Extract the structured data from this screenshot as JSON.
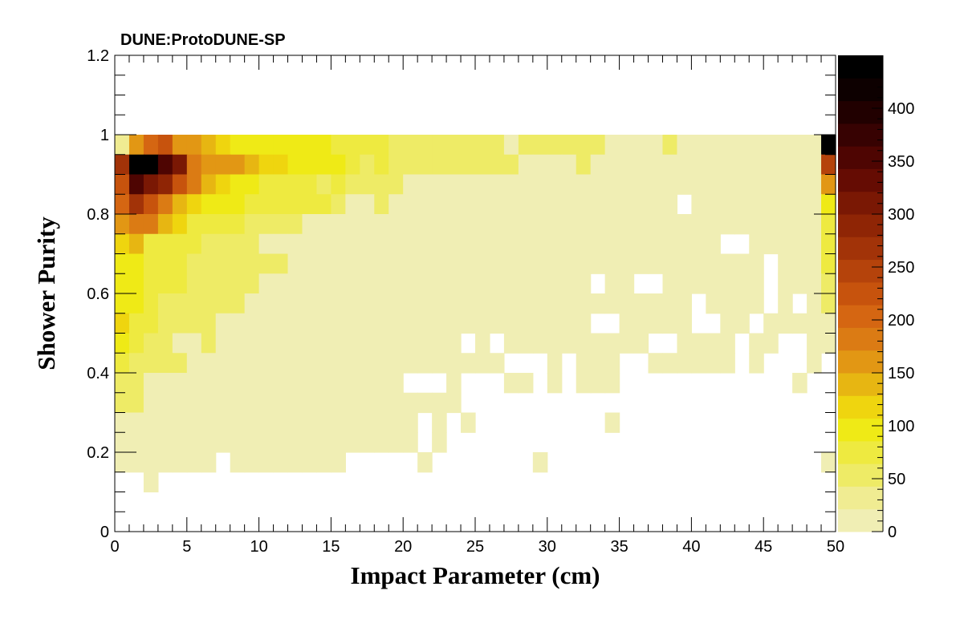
{
  "chart_data": {
    "type": "heatmap",
    "title": "DUNE:ProtoDUNE-SP",
    "xlabel": "Impact Parameter (cm)",
    "ylabel": "Shower Purity",
    "xlim": [
      0,
      50
    ],
    "ylim": [
      0,
      1.2
    ],
    "x_ticks": [
      "0",
      "5",
      "10",
      "15",
      "20",
      "25",
      "30",
      "35",
      "40",
      "45",
      "50"
    ],
    "y_ticks": [
      "0",
      "0.2",
      "0.4",
      "0.6",
      "0.8",
      "1",
      "1.2"
    ],
    "z_ticks": [
      "0",
      "50",
      "100",
      "150",
      "200",
      "250",
      "300",
      "350",
      "400"
    ],
    "zlim": [
      0,
      450
    ],
    "nbins_x": 50,
    "nbins_y": 20,
    "y_bin_width": 0.05,
    "colormap": [
      "#f0eeb4",
      "#f0ec92",
      "#eeeb66",
      "#eeea40",
      "#efea16",
      "#efd50f",
      "#e7b612",
      "#e29714",
      "#db7b14",
      "#d56612",
      "#c7530d",
      "#b5430b",
      "#a23308",
      "#8f2505",
      "#7a1804",
      "#650c03",
      "#4e0502",
      "#370202",
      "#210000",
      "#0d0000",
      "#000000"
    ],
    "grid": false,
    "legend": "right",
    "rows_note": "values[0] is the top row (purity 0.95-1.0), values[19] the bottom row (purity 0-0.05); columns are 1 cm bins from 0 to 50",
    "values": [
      [
        25,
        170,
        210,
        215,
        165,
        160,
        140,
        125,
        100,
        100,
        100,
        95,
        90,
        90,
        90,
        85,
        75,
        65,
        65,
        50,
        50,
        50,
        50,
        50,
        50,
        50,
        50,
        20,
        50,
        50,
        50,
        50,
        50,
        50,
        20,
        20,
        20,
        20,
        55,
        20,
        20,
        20,
        20,
        20,
        20,
        20,
        20,
        20,
        20,
        440
      ],
      [
        260,
        440,
        440,
        345,
        300,
        185,
        160,
        165,
        170,
        140,
        110,
        110,
        95,
        95,
        90,
        90,
        65,
        60,
        65,
        50,
        50,
        50,
        50,
        50,
        50,
        50,
        50,
        50,
        20,
        20,
        20,
        20,
        50,
        20,
        20,
        20,
        20,
        20,
        20,
        20,
        20,
        20,
        20,
        20,
        20,
        20,
        20,
        20,
        20,
        250
      ],
      [
        215,
        360,
        320,
        280,
        220,
        190,
        130,
        110,
        100,
        95,
        80,
        75,
        75,
        75,
        60,
        70,
        60,
        50,
        50,
        50,
        20,
        20,
        20,
        20,
        20,
        20,
        20,
        20,
        20,
        20,
        20,
        20,
        20,
        20,
        20,
        20,
        20,
        20,
        20,
        20,
        20,
        20,
        20,
        20,
        20,
        20,
        20,
        20,
        20,
        150
      ],
      [
        195,
        275,
        220,
        175,
        140,
        110,
        100,
        90,
        90,
        70,
        70,
        70,
        65,
        65,
        65,
        55,
        20,
        20,
        50,
        20,
        20,
        20,
        20,
        20,
        20,
        20,
        20,
        20,
        20,
        20,
        20,
        20,
        20,
        20,
        20,
        20,
        20,
        20,
        20,
        0,
        20,
        20,
        20,
        20,
        20,
        20,
        20,
        20,
        20,
        90
      ],
      [
        170,
        175,
        175,
        135,
        115,
        85,
        75,
        65,
        65,
        55,
        55,
        55,
        55,
        20,
        20,
        20,
        20,
        20,
        20,
        20,
        20,
        20,
        20,
        20,
        20,
        20,
        20,
        20,
        20,
        20,
        20,
        20,
        20,
        20,
        20,
        20,
        20,
        20,
        20,
        20,
        20,
        20,
        20,
        20,
        20,
        20,
        20,
        20,
        20,
        85
      ],
      [
        125,
        130,
        75,
        75,
        70,
        70,
        55,
        55,
        55,
        55,
        20,
        20,
        20,
        20,
        20,
        20,
        20,
        20,
        20,
        20,
        20,
        20,
        20,
        20,
        20,
        20,
        20,
        20,
        20,
        20,
        20,
        20,
        20,
        20,
        20,
        20,
        20,
        20,
        20,
        20,
        20,
        20,
        0,
        0,
        20,
        20,
        20,
        20,
        20,
        65
      ],
      [
        95,
        105,
        70,
        70,
        70,
        60,
        55,
        55,
        55,
        55,
        55,
        55,
        20,
        20,
        20,
        20,
        20,
        20,
        20,
        20,
        20,
        20,
        20,
        20,
        20,
        20,
        20,
        20,
        20,
        20,
        20,
        20,
        20,
        20,
        20,
        20,
        20,
        20,
        20,
        20,
        20,
        20,
        20,
        20,
        20,
        0,
        20,
        20,
        20,
        65
      ],
      [
        90,
        105,
        65,
        65,
        65,
        55,
        55,
        55,
        55,
        55,
        20,
        20,
        20,
        20,
        20,
        20,
        20,
        20,
        20,
        20,
        20,
        20,
        20,
        20,
        20,
        20,
        20,
        20,
        20,
        20,
        20,
        20,
        20,
        0,
        20,
        20,
        0,
        0,
        20,
        20,
        20,
        20,
        20,
        20,
        20,
        0,
        20,
        20,
        20,
        55
      ],
      [
        100,
        90,
        75,
        60,
        60,
        55,
        55,
        55,
        55,
        20,
        20,
        20,
        20,
        20,
        20,
        20,
        20,
        20,
        20,
        20,
        20,
        20,
        20,
        20,
        20,
        20,
        20,
        20,
        20,
        20,
        20,
        20,
        20,
        20,
        20,
        20,
        20,
        20,
        20,
        20,
        0,
        20,
        20,
        20,
        20,
        0,
        20,
        0,
        20,
        55
      ],
      [
        115,
        80,
        70,
        60,
        55,
        50,
        50,
        20,
        20,
        20,
        20,
        20,
        20,
        20,
        20,
        20,
        20,
        20,
        20,
        20,
        20,
        20,
        20,
        20,
        20,
        20,
        20,
        20,
        20,
        20,
        20,
        20,
        20,
        0,
        0,
        20,
        20,
        20,
        20,
        20,
        0,
        0,
        20,
        20,
        0,
        20,
        20,
        20,
        20,
        20
      ],
      [
        95,
        80,
        55,
        50,
        20,
        20,
        50,
        20,
        20,
        20,
        20,
        20,
        20,
        20,
        20,
        20,
        20,
        20,
        20,
        20,
        20,
        20,
        20,
        20,
        0,
        20,
        0,
        20,
        20,
        20,
        20,
        20,
        20,
        20,
        20,
        20,
        20,
        0,
        0,
        20,
        20,
        20,
        20,
        0,
        20,
        20,
        0,
        0,
        20,
        20
      ],
      [
        70,
        55,
        50,
        50,
        50,
        20,
        20,
        20,
        20,
        20,
        20,
        20,
        20,
        20,
        20,
        20,
        20,
        20,
        20,
        20,
        20,
        20,
        20,
        20,
        20,
        20,
        20,
        0,
        0,
        0,
        20,
        0,
        20,
        20,
        20,
        0,
        0,
        20,
        20,
        20,
        20,
        20,
        20,
        0,
        20,
        0,
        0,
        0,
        20,
        0
      ],
      [
        55,
        50,
        20,
        20,
        20,
        20,
        20,
        20,
        20,
        20,
        20,
        20,
        20,
        20,
        20,
        20,
        20,
        20,
        20,
        20,
        0,
        0,
        0,
        20,
        0,
        0,
        0,
        20,
        20,
        0,
        20,
        0,
        20,
        20,
        20,
        0,
        0,
        0,
        0,
        0,
        0,
        0,
        0,
        0,
        0,
        0,
        0,
        20,
        0,
        0
      ],
      [
        50,
        50,
        20,
        20,
        20,
        20,
        20,
        20,
        20,
        20,
        20,
        20,
        20,
        20,
        20,
        20,
        20,
        20,
        20,
        20,
        20,
        20,
        20,
        20,
        0,
        0,
        0,
        0,
        0,
        0,
        0,
        0,
        0,
        0,
        0,
        0,
        0,
        0,
        0,
        0,
        0,
        0,
        0,
        0,
        0,
        0,
        0,
        0,
        0,
        0
      ],
      [
        20,
        20,
        20,
        20,
        20,
        20,
        20,
        20,
        20,
        20,
        20,
        20,
        20,
        20,
        20,
        20,
        20,
        20,
        20,
        20,
        20,
        0,
        20,
        0,
        20,
        0,
        0,
        0,
        0,
        0,
        0,
        0,
        0,
        0,
        20,
        0,
        0,
        0,
        0,
        0,
        0,
        0,
        0,
        0,
        0,
        0,
        0,
        0,
        0,
        0
      ],
      [
        20,
        20,
        20,
        20,
        20,
        20,
        20,
        20,
        20,
        20,
        20,
        20,
        20,
        20,
        20,
        20,
        20,
        20,
        20,
        20,
        20,
        0,
        20,
        0,
        0,
        0,
        0,
        0,
        0,
        0,
        0,
        0,
        0,
        0,
        0,
        0,
        0,
        0,
        0,
        0,
        0,
        0,
        0,
        0,
        0,
        0,
        0,
        0,
        0,
        0
      ],
      [
        20,
        20,
        20,
        20,
        20,
        20,
        20,
        0,
        20,
        20,
        20,
        20,
        20,
        20,
        20,
        20,
        0,
        0,
        0,
        0,
        0,
        20,
        0,
        0,
        0,
        0,
        0,
        0,
        0,
        20,
        0,
        0,
        0,
        0,
        0,
        0,
        0,
        0,
        0,
        0,
        0,
        0,
        0,
        0,
        0,
        0,
        0,
        0,
        0,
        20
      ],
      [
        0,
        0,
        20,
        0,
        0,
        0,
        0,
        0,
        0,
        0,
        0,
        0,
        0,
        0,
        0,
        0,
        0,
        0,
        0,
        0,
        0,
        0,
        0,
        0,
        0,
        0,
        0,
        0,
        0,
        0,
        0,
        0,
        0,
        0,
        0,
        0,
        0,
        0,
        0,
        0,
        0,
        0,
        0,
        0,
        0,
        0,
        0,
        0,
        0,
        0
      ],
      [
        0,
        0,
        0,
        0,
        0,
        0,
        0,
        0,
        0,
        0,
        0,
        0,
        0,
        0,
        0,
        0,
        0,
        0,
        0,
        0,
        0,
        0,
        0,
        0,
        0,
        0,
        0,
        0,
        0,
        0,
        0,
        0,
        0,
        0,
        0,
        0,
        0,
        0,
        0,
        0,
        0,
        0,
        0,
        0,
        0,
        0,
        0,
        0,
        0,
        0
      ],
      [
        0,
        0,
        0,
        0,
        0,
        0,
        0,
        0,
        0,
        0,
        0,
        0,
        0,
        0,
        0,
        0,
        0,
        0,
        0,
        0,
        0,
        0,
        0,
        0,
        0,
        0,
        0,
        0,
        0,
        0,
        0,
        0,
        0,
        0,
        0,
        0,
        0,
        0,
        0,
        0,
        0,
        0,
        0,
        0,
        0,
        0,
        0,
        0,
        0,
        0
      ]
    ]
  }
}
